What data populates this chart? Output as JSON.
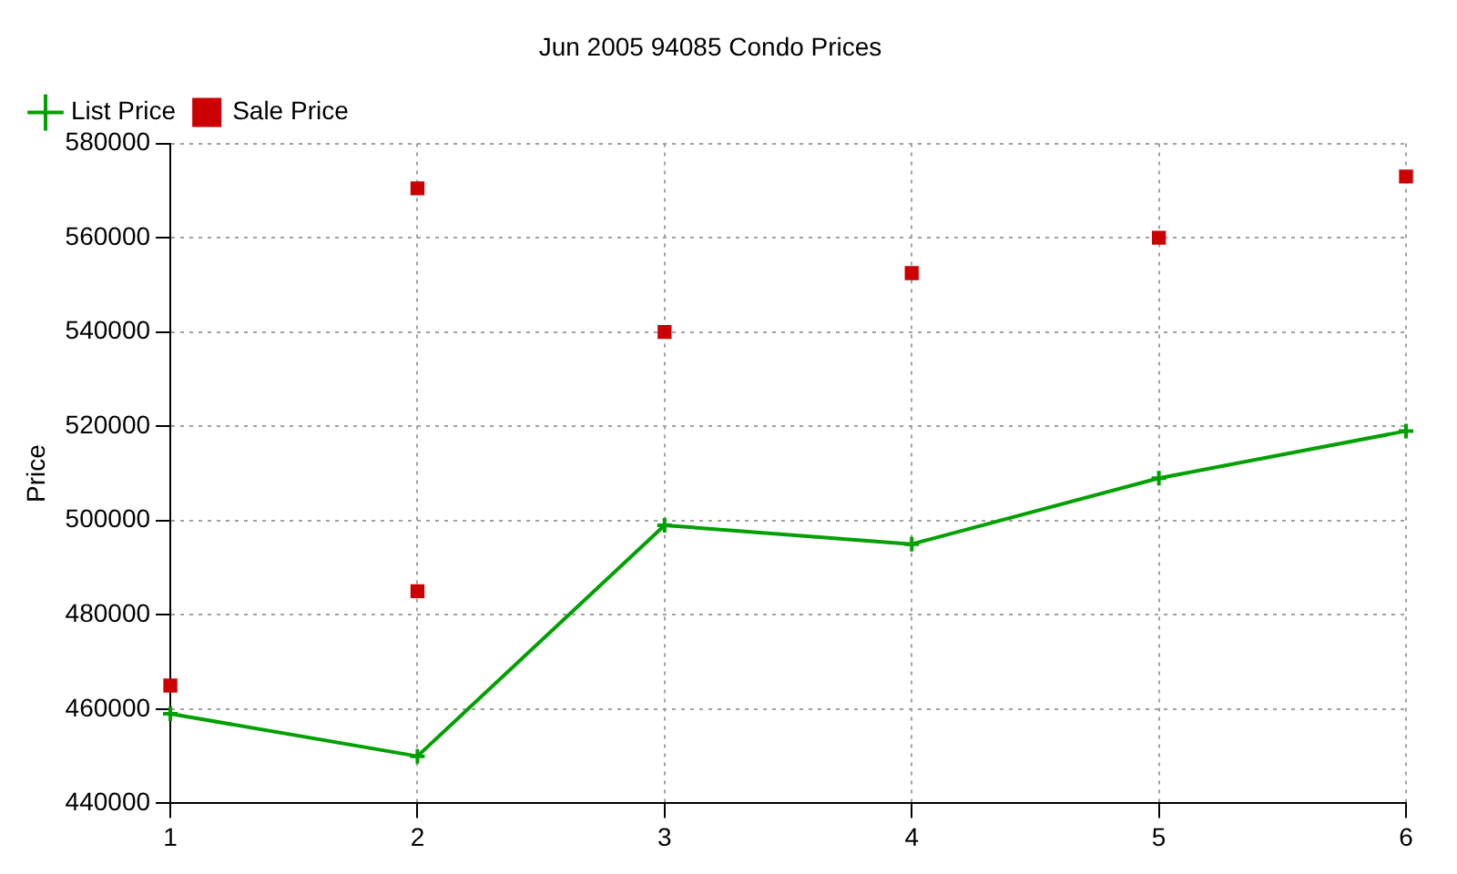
{
  "chart_data": {
    "type": "line",
    "title": "Jun 2005 94085 Condo Prices",
    "ylabel": "Price",
    "x": [
      1,
      2,
      3,
      4,
      5,
      6
    ],
    "xlim": [
      1,
      6
    ],
    "xticks": [
      1,
      2,
      3,
      4,
      5,
      6
    ],
    "ylim": [
      440000,
      580000
    ],
    "yticks": [
      440000,
      460000,
      480000,
      500000,
      520000,
      540000,
      560000,
      580000
    ],
    "grid": true,
    "legend": "top left",
    "series": [
      {
        "name": "List Price",
        "color": "#00a000",
        "marker": "cross",
        "values": [
          459000,
          450000,
          499000,
          495000,
          509000,
          519000
        ]
      },
      {
        "name": "Sale Price",
        "type": "scatter",
        "color": "#cc0000",
        "marker": "square",
        "x": [
          1,
          2,
          2,
          3,
          4,
          5,
          6
        ],
        "values": [
          465000,
          570500,
          485000,
          540000,
          552500,
          560000,
          573000
        ]
      }
    ]
  }
}
